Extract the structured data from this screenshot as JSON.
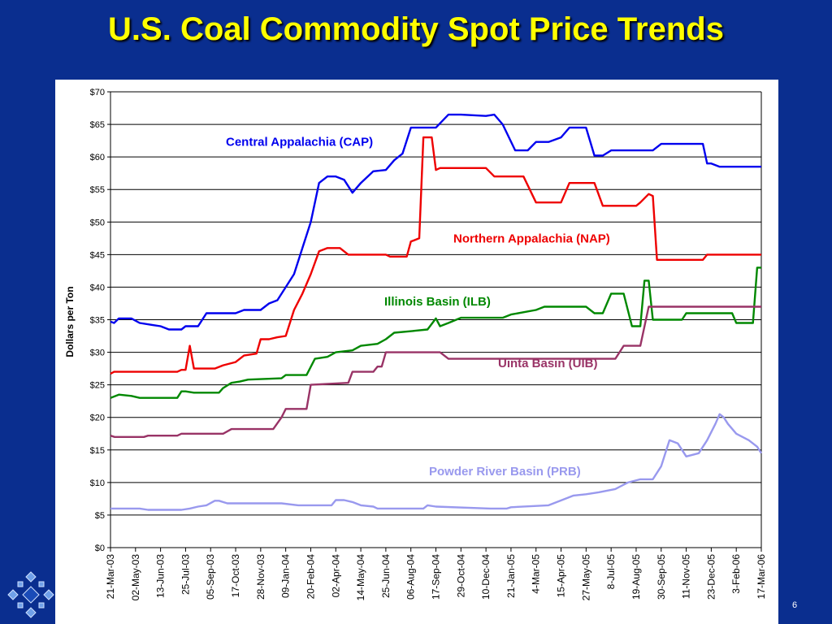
{
  "slide": {
    "title": "U.S. Coal Commodity Spot Price Trends",
    "page_number": "6",
    "background_color": "#0a2e8f",
    "title_color": "#ffff00",
    "logo_icon": "blue-diamond-pattern-logo"
  },
  "chart_data": {
    "type": "line",
    "title": "",
    "xlabel": "",
    "ylabel": "Dollars per Ton",
    "ylim": [
      0,
      70
    ],
    "y_ticks": [
      0,
      5,
      10,
      15,
      20,
      25,
      30,
      35,
      40,
      45,
      50,
      55,
      60,
      65,
      70
    ],
    "y_tick_labels": [
      "$0",
      "$5",
      "$10",
      "$15",
      "$20",
      "$25",
      "$30",
      "$35",
      "$40",
      "$45",
      "$50",
      "$55",
      "$60",
      "$65",
      "$70"
    ],
    "grid": "horizontal",
    "x_tick_labels": [
      "21-Mar-03",
      "02-May-03",
      "13-Jun-03",
      "25-Jul-03",
      "05-Sep-03",
      "17-Oct-03",
      "28-Nov-03",
      "09-Jan-04",
      "20-Feb-04",
      "02-Apr-04",
      "14-May-04",
      "25-Jun-04",
      "06-Aug-04",
      "17-Sep-04",
      "29-Oct-04",
      "10-Dec-04",
      "21-Jan-05",
      "4-Mar-05",
      "15-Apr-05",
      "27-May-05",
      "8-Jul-05",
      "19-Aug-05",
      "30-Sep-05",
      "11-Nov-05",
      "23-Dec-05",
      "3-Feb-06",
      "17-Mar-06"
    ],
    "x_tick_weeks": [
      0,
      6,
      12,
      18,
      24,
      30,
      36,
      42,
      48,
      54,
      60,
      66,
      72,
      78,
      84,
      90,
      96,
      102,
      108,
      114,
      120,
      126,
      132,
      138,
      144,
      150,
      156
    ],
    "series": [
      {
        "name": "Central Appalachia (CAP)",
        "color": "#0000ee",
        "label_x": 2,
        "label_y": 62.3,
        "points": [
          [
            "21-Mar-03",
            34.7
          ],
          [
            "27-Mar-03",
            34.5
          ],
          [
            "04-Apr-03",
            35.2
          ],
          [
            "25-Apr-03",
            35.2
          ],
          [
            "09-May-03",
            34.5
          ],
          [
            "30-May-03",
            34.2
          ],
          [
            "13-Jun-03",
            34.0
          ],
          [
            "27-Jun-03",
            33.5
          ],
          [
            "18-Jul-03",
            33.5
          ],
          [
            "25-Jul-03",
            34.0
          ],
          [
            "15-Aug-03",
            34.0
          ],
          [
            "29-Aug-03",
            36.0
          ],
          [
            "17-Oct-03",
            36.0
          ],
          [
            "31-Oct-03",
            36.5
          ],
          [
            "28-Nov-03",
            36.5
          ],
          [
            "12-Dec-03",
            37.5
          ],
          [
            "26-Dec-03",
            38.0
          ],
          [
            "09-Jan-04",
            40.0
          ],
          [
            "23-Jan-04",
            42.0
          ],
          [
            "06-Feb-04",
            46.0
          ],
          [
            "20-Feb-04",
            50.0
          ],
          [
            "05-Mar-04",
            56.0
          ],
          [
            "19-Mar-04",
            57.0
          ],
          [
            "02-Apr-04",
            57.0
          ],
          [
            "16-Apr-04",
            56.5
          ],
          [
            "30-Apr-04",
            54.5
          ],
          [
            "14-May-04",
            56.0
          ],
          [
            "04-Jun-04",
            57.8
          ],
          [
            "25-Jun-04",
            58.0
          ],
          [
            "09-Jul-04",
            59.5
          ],
          [
            "23-Jul-04",
            60.5
          ],
          [
            "06-Aug-04",
            64.5
          ],
          [
            "17-Sep-04",
            64.5
          ],
          [
            "08-Oct-04",
            66.5
          ],
          [
            "29-Oct-04",
            66.5
          ],
          [
            "10-Dec-04",
            66.3
          ],
          [
            "24-Dec-04",
            66.5
          ],
          [
            "07-Jan-05",
            65.0
          ],
          [
            "28-Jan-05",
            61.0
          ],
          [
            "18-Feb-05",
            61.0
          ],
          [
            "4-Mar-05",
            62.3
          ],
          [
            "25-Mar-05",
            62.3
          ],
          [
            "15-Apr-05",
            63.0
          ],
          [
            "29-Apr-05",
            64.5
          ],
          [
            "27-May-05",
            64.5
          ],
          [
            "10-Jun-05",
            60.2
          ],
          [
            "24-Jun-05",
            60.2
          ],
          [
            "8-Jul-05",
            61.0
          ],
          [
            "19-Aug-05",
            61.0
          ],
          [
            "16-Sep-05",
            61.0
          ],
          [
            "30-Sep-05",
            62.0
          ],
          [
            "09-Dec-05",
            62.0
          ],
          [
            "16-Dec-05",
            59.0
          ],
          [
            "23-Dec-05",
            59.0
          ],
          [
            "06-Jan-06",
            58.5
          ],
          [
            "17-Mar-06",
            58.5
          ]
        ]
      },
      {
        "name": "Northern Appalachia (NAP)",
        "color": "#ee0000",
        "label_y": 47.5,
        "points": [
          [
            "21-Mar-03",
            26.7
          ],
          [
            "27-Mar-03",
            27.0
          ],
          [
            "11-Jul-03",
            27.0
          ],
          [
            "18-Jul-03",
            27.3
          ],
          [
            "25-Jul-03",
            27.3
          ],
          [
            "01-Aug-03",
            31.0
          ],
          [
            "08-Aug-03",
            27.5
          ],
          [
            "12-Sep-03",
            27.5
          ],
          [
            "26-Sep-03",
            28.0
          ],
          [
            "17-Oct-03",
            28.5
          ],
          [
            "31-Oct-03",
            29.5
          ],
          [
            "21-Nov-03",
            29.8
          ],
          [
            "28-Nov-03",
            32.0
          ],
          [
            "12-Dec-03",
            32.0
          ],
          [
            "26-Dec-03",
            32.3
          ],
          [
            "09-Jan-04",
            32.5
          ],
          [
            "23-Jan-04",
            36.5
          ],
          [
            "06-Feb-04",
            39.0
          ],
          [
            "20-Feb-04",
            42.0
          ],
          [
            "05-Mar-04",
            45.5
          ],
          [
            "19-Mar-04",
            46.0
          ],
          [
            "09-Apr-04",
            46.0
          ],
          [
            "23-Apr-04",
            45.0
          ],
          [
            "25-Jun-04",
            45.0
          ],
          [
            "02-Jul-04",
            44.7
          ],
          [
            "30-Jul-04",
            44.7
          ],
          [
            "06-Aug-04",
            47.0
          ],
          [
            "20-Aug-04",
            47.5
          ],
          [
            "27-Aug-04",
            63.0
          ],
          [
            "10-Sep-04",
            63.0
          ],
          [
            "17-Sep-04",
            58.0
          ],
          [
            "24-Sep-04",
            58.3
          ],
          [
            "10-Dec-04",
            58.3
          ],
          [
            "24-Dec-04",
            57.0
          ],
          [
            "11-Feb-05",
            57.0
          ],
          [
            "4-Mar-05",
            53.0
          ],
          [
            "15-Apr-05",
            53.0
          ],
          [
            "29-Apr-05",
            56.0
          ],
          [
            "10-Jun-05",
            56.0
          ],
          [
            "24-Jun-05",
            52.5
          ],
          [
            "19-Aug-05",
            52.5
          ],
          [
            "26-Aug-05",
            53.0
          ],
          [
            "09-Sep-05",
            54.3
          ],
          [
            "16-Sep-05",
            54.0
          ],
          [
            "23-Sep-05",
            44.2
          ],
          [
            "09-Dec-05",
            44.2
          ],
          [
            "16-Dec-05",
            45.0
          ],
          [
            "17-Mar-06",
            45.0
          ]
        ]
      },
      {
        "name": "Illinois Basin (ILB)",
        "color": "#008800",
        "label_y": 37.8,
        "points": [
          [
            "21-Mar-03",
            23.0
          ],
          [
            "04-Apr-03",
            23.5
          ],
          [
            "25-Apr-03",
            23.3
          ],
          [
            "09-May-03",
            23.0
          ],
          [
            "11-Jul-03",
            23.0
          ],
          [
            "18-Jul-03",
            24.0
          ],
          [
            "25-Jul-03",
            24.0
          ],
          [
            "08-Aug-03",
            23.8
          ],
          [
            "19-Sep-03",
            23.8
          ],
          [
            "26-Sep-03",
            24.5
          ],
          [
            "10-Oct-03",
            25.3
          ],
          [
            "24-Oct-03",
            25.5
          ],
          [
            "07-Nov-03",
            25.8
          ],
          [
            "02-Jan-04",
            26.0
          ],
          [
            "09-Jan-04",
            26.5
          ],
          [
            "13-Feb-04",
            26.5
          ],
          [
            "27-Feb-04",
            29.0
          ],
          [
            "19-Mar-04",
            29.3
          ],
          [
            "02-Apr-04",
            30.0
          ],
          [
            "30-Apr-04",
            30.3
          ],
          [
            "14-May-04",
            31.0
          ],
          [
            "11-Jun-04",
            31.3
          ],
          [
            "25-Jun-04",
            32.0
          ],
          [
            "09-Jul-04",
            33.0
          ],
          [
            "13-Aug-04",
            33.3
          ],
          [
            "03-Sep-04",
            33.5
          ],
          [
            "17-Sep-04",
            35.2
          ],
          [
            "24-Sep-04",
            34.0
          ],
          [
            "08-Oct-04",
            34.5
          ],
          [
            "29-Oct-04",
            35.3
          ],
          [
            "07-Jan-05",
            35.3
          ],
          [
            "21-Jan-05",
            35.8
          ],
          [
            "4-Mar-05",
            36.5
          ],
          [
            "18-Mar-05",
            37.0
          ],
          [
            "27-May-05",
            37.0
          ],
          [
            "10-Jun-05",
            36.0
          ],
          [
            "24-Jun-05",
            36.0
          ],
          [
            "08-Jul-05",
            39.0
          ],
          [
            "29-Jul-05",
            39.0
          ],
          [
            "12-Aug-05",
            34.0
          ],
          [
            "26-Aug-05",
            34.0
          ],
          [
            "02-Sep-05",
            41.0
          ],
          [
            "09-Sep-05",
            41.0
          ],
          [
            "16-Sep-05",
            35.0
          ],
          [
            "04-Nov-05",
            35.0
          ],
          [
            "11-Nov-05",
            36.0
          ],
          [
            "27-Jan-06",
            36.0
          ],
          [
            "3-Feb-06",
            34.5
          ],
          [
            "03-Mar-06",
            34.5
          ],
          [
            "10-Mar-06",
            43.0
          ],
          [
            "17-Mar-06",
            43.0
          ]
        ]
      },
      {
        "name": "Uinta Basin (UIB)",
        "color": "#993366",
        "label_y": 28.3,
        "points": [
          [
            "21-Mar-03",
            17.2
          ],
          [
            "28-Mar-03",
            17.0
          ],
          [
            "16-May-03",
            17.0
          ],
          [
            "23-May-03",
            17.2
          ],
          [
            "11-Jul-03",
            17.2
          ],
          [
            "18-Jul-03",
            17.5
          ],
          [
            "26-Sep-03",
            17.5
          ],
          [
            "10-Oct-03",
            18.2
          ],
          [
            "19-Dec-03",
            18.2
          ],
          [
            "02-Jan-04",
            20.0
          ],
          [
            "09-Jan-04",
            21.3
          ],
          [
            "13-Feb-04",
            21.3
          ],
          [
            "20-Feb-04",
            25.0
          ],
          [
            "23-Apr-04",
            25.3
          ],
          [
            "30-Apr-04",
            27.0
          ],
          [
            "04-Jun-04",
            27.0
          ],
          [
            "11-Jun-04",
            27.8
          ],
          [
            "18-Jun-04",
            27.8
          ],
          [
            "25-Jun-04",
            30.0
          ],
          [
            "24-Sep-04",
            30.0
          ],
          [
            "08-Oct-04",
            29.0
          ],
          [
            "10-Jun-05",
            29.0
          ],
          [
            "15-Jul-05",
            29.0
          ],
          [
            "29-Jul-05",
            31.0
          ],
          [
            "26-Aug-05",
            31.0
          ],
          [
            "09-Sep-05",
            37.0
          ],
          [
            "17-Mar-06",
            37.0
          ]
        ]
      },
      {
        "name": "Powder River Basin (PRB)",
        "color": "#9999ee",
        "label_y": 11.7,
        "points": [
          [
            "21-Mar-03",
            6.0
          ],
          [
            "09-May-03",
            6.0
          ],
          [
            "23-May-03",
            5.8
          ],
          [
            "18-Jul-03",
            5.8
          ],
          [
            "01-Aug-03",
            6.0
          ],
          [
            "15-Aug-03",
            6.3
          ],
          [
            "29-Aug-03",
            6.5
          ],
          [
            "12-Sep-03",
            7.2
          ],
          [
            "19-Sep-03",
            7.2
          ],
          [
            "03-Oct-03",
            6.8
          ],
          [
            "07-Nov-03",
            6.8
          ],
          [
            "02-Jan-04",
            6.8
          ],
          [
            "30-Jan-04",
            6.5
          ],
          [
            "26-Mar-04",
            6.5
          ],
          [
            "02-Apr-04",
            7.3
          ],
          [
            "16-Apr-04",
            7.3
          ],
          [
            "30-Apr-04",
            7.0
          ],
          [
            "14-May-04",
            6.5
          ],
          [
            "04-Jun-04",
            6.3
          ],
          [
            "11-Jun-04",
            6.0
          ],
          [
            "13-Aug-04",
            6.0
          ],
          [
            "27-Aug-04",
            6.0
          ],
          [
            "03-Sep-04",
            6.5
          ],
          [
            "17-Sep-04",
            6.3
          ],
          [
            "17-Dec-04",
            6.0
          ],
          [
            "14-Jan-05",
            6.0
          ],
          [
            "21-Jan-05",
            6.2
          ],
          [
            "25-Mar-05",
            6.5
          ],
          [
            "22-Apr-05",
            7.5
          ],
          [
            "06-May-05",
            8.0
          ],
          [
            "27-May-05",
            8.2
          ],
          [
            "17-Jun-05",
            8.5
          ],
          [
            "15-Jul-05",
            9.0
          ],
          [
            "05-Aug-05",
            10.0
          ],
          [
            "26-Aug-05",
            10.5
          ],
          [
            "16-Sep-05",
            10.5
          ],
          [
            "30-Sep-05",
            12.5
          ],
          [
            "14-Oct-05",
            16.5
          ],
          [
            "28-Oct-05",
            16.0
          ],
          [
            "11-Nov-05",
            14.0
          ],
          [
            "02-Dec-05",
            14.5
          ],
          [
            "16-Dec-05",
            16.5
          ],
          [
            "30-Dec-05",
            19.0
          ],
          [
            "06-Jan-06",
            20.5
          ],
          [
            "13-Jan-06",
            20.0
          ],
          [
            "20-Jan-06",
            19.0
          ],
          [
            "3-Feb-06",
            17.5
          ],
          [
            "24-Feb-06",
            16.5
          ],
          [
            "10-Mar-06",
            15.5
          ],
          [
            "17-Mar-06",
            14.5
          ]
        ]
      }
    ]
  }
}
